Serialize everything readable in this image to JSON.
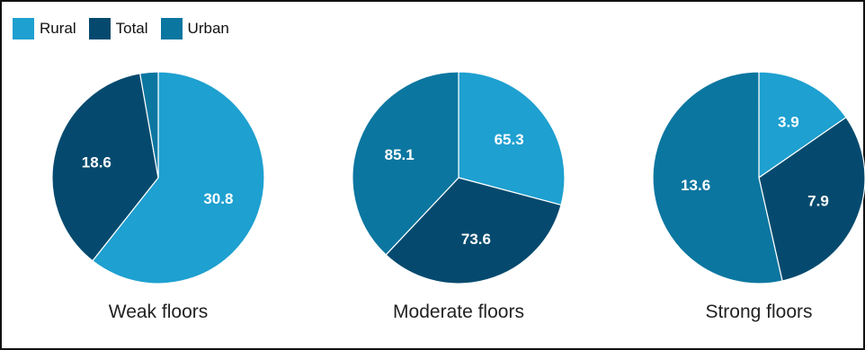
{
  "chart_data": [
    {
      "type": "pie",
      "title": "Weak floors",
      "categories": [
        "Rural",
        "Total",
        "Urban"
      ],
      "values": [
        30.8,
        18.6,
        1.4
      ],
      "labels": [
        "30.8",
        "18.6",
        ""
      ],
      "colors": [
        "#1ea0d0",
        "#054a6e",
        "#0b76a0"
      ]
    },
    {
      "type": "pie",
      "title": "Moderate floors",
      "categories": [
        "Rural",
        "Total",
        "Urban"
      ],
      "values": [
        65.3,
        73.6,
        85.1
      ],
      "labels": [
        "65.3",
        "73.6",
        "85.1"
      ],
      "colors": [
        "#1ea0d0",
        "#054a6e",
        "#0b76a0"
      ]
    },
    {
      "type": "pie",
      "title": "Strong floors",
      "categories": [
        "Rural",
        "Total",
        "Urban"
      ],
      "values": [
        3.9,
        7.9,
        13.6
      ],
      "labels": [
        "3.9",
        "7.9",
        "13.6"
      ],
      "colors": [
        "#1ea0d0",
        "#054a6e",
        "#0b76a0"
      ]
    }
  ],
  "legend": {
    "items": [
      {
        "label": "Rural",
        "color": "#1ea0d0"
      },
      {
        "label": "Total",
        "color": "#054a6e"
      },
      {
        "label": "Urban",
        "color": "#0b76a0"
      }
    ]
  }
}
